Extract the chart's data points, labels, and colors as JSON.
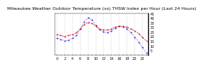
{
  "title": "Milwaukee Weather Outdoor Temperature (vs) THSW Index per Hour (Last 24 Hours)",
  "hours": [
    0,
    1,
    2,
    3,
    4,
    5,
    6,
    7,
    8,
    9,
    10,
    11,
    12,
    13,
    14,
    15,
    16,
    17,
    18,
    19,
    20,
    21,
    22,
    23
  ],
  "temp": [
    22,
    21,
    20,
    21,
    22,
    24,
    28,
    33,
    35,
    34,
    31,
    28,
    27,
    27,
    28,
    30,
    31,
    31,
    30,
    28,
    26,
    23,
    19,
    15
  ],
  "thsw": [
    18,
    17,
    15,
    16,
    18,
    21,
    28,
    36,
    40,
    38,
    32,
    27,
    25,
    24,
    26,
    29,
    31,
    30,
    28,
    24,
    19,
    14,
    8,
    2
  ],
  "temp_color": "#dd0000",
  "thsw_color": "#0000cc",
  "bg_color": "#ffffff",
  "plot_bg": "#ffffff",
  "grid_color": "#888888",
  "ylim_min": 0,
  "ylim_max": 45,
  "ytick_vals": [
    5,
    10,
    15,
    20,
    25,
    30,
    35,
    40,
    45
  ],
  "ytick_labels": [
    "5",
    "10",
    "15",
    "20",
    "25",
    "30",
    "35",
    "40",
    "45"
  ],
  "title_fontsize": 4.5,
  "tick_fontsize": 3.5
}
